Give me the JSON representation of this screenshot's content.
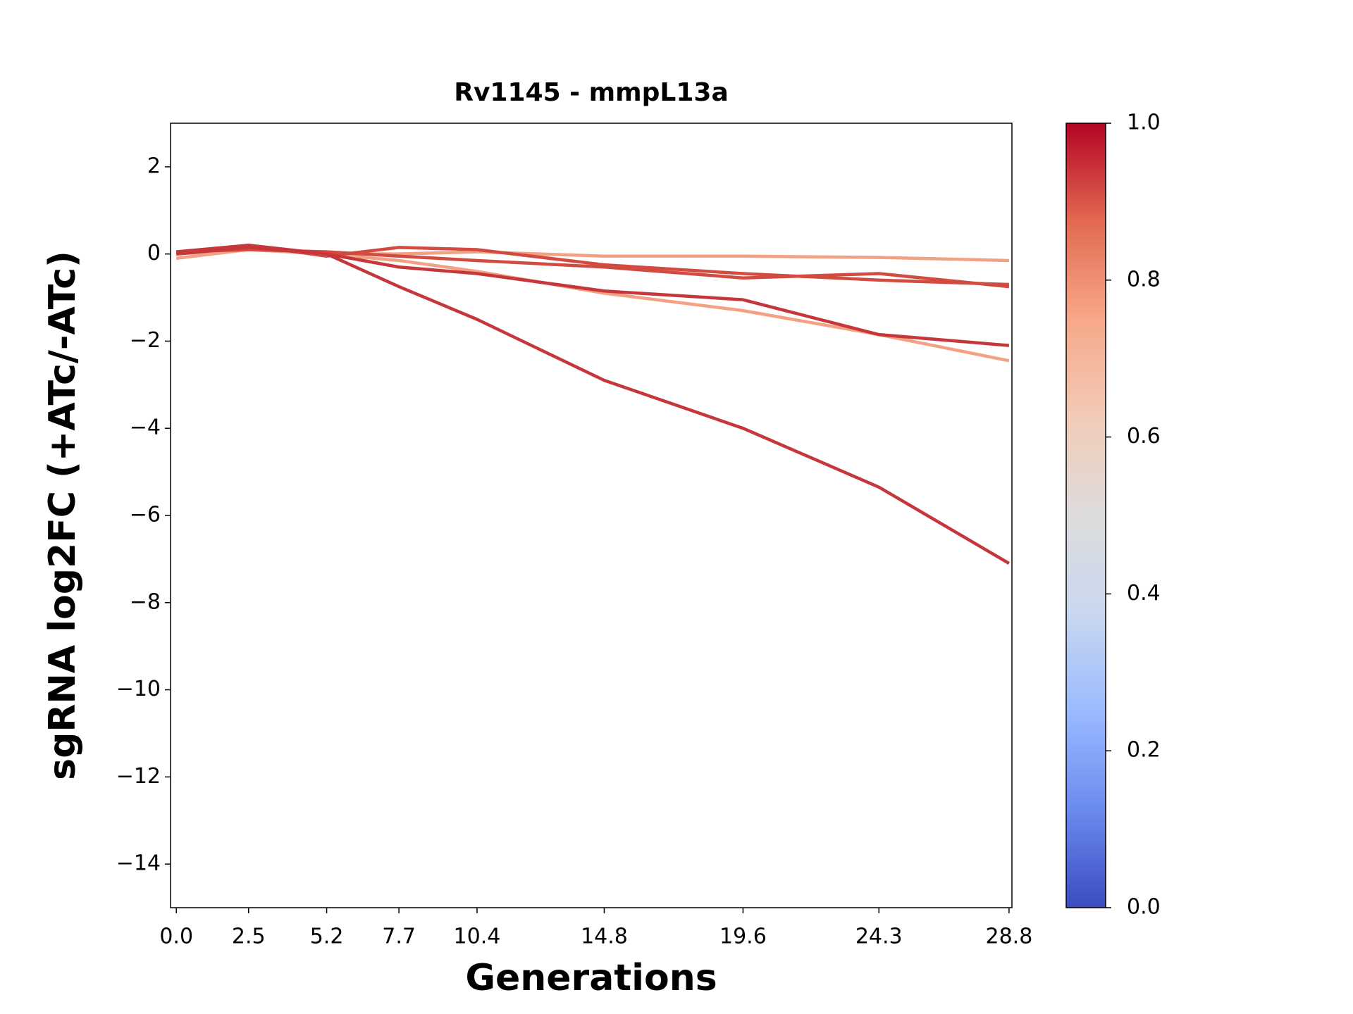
{
  "chart_data": {
    "type": "line",
    "title": "Rv1145 - mmpL13a",
    "xlabel": "Generations",
    "ylabel": "sgRNA log2FC (+ATc/-ATc)",
    "x": [
      0,
      2.5,
      5.2,
      7.7,
      10.4,
      14.8,
      19.6,
      24.3,
      28.8
    ],
    "series": [
      {
        "color": "#f2a184",
        "values": [
          -0.1,
          0.1,
          0.0,
          0.0,
          0.05,
          -0.05,
          -0.05,
          -0.08,
          -0.15
        ]
      },
      {
        "color": "#f2a184",
        "values": [
          0.0,
          0.1,
          0.0,
          -0.15,
          -0.4,
          -0.9,
          -1.3,
          -1.85,
          -2.45
        ]
      },
      {
        "color": "#d24b40",
        "values": [
          0.05,
          0.1,
          0.05,
          -0.05,
          -0.15,
          -0.3,
          -0.55,
          -0.45,
          -0.75
        ]
      },
      {
        "color": "#d24b40",
        "values": [
          0.0,
          0.2,
          -0.05,
          0.15,
          0.1,
          -0.25,
          -0.45,
          -0.6,
          -0.7
        ]
      },
      {
        "color": "#c5373a",
        "values": [
          0.0,
          0.15,
          0.0,
          -0.3,
          -0.45,
          -0.85,
          -1.05,
          -1.85,
          -2.1
        ]
      },
      {
        "color": "#c5373a",
        "values": [
          0.05,
          0.2,
          0.0,
          -0.75,
          -1.5,
          -2.9,
          -4.0,
          -5.35,
          -7.1
        ]
      }
    ],
    "xlim": [
      -0.2,
      28.9
    ],
    "ylim": [
      -15,
      3
    ],
    "xticks": [
      {
        "value": 0,
        "label": "0.0"
      },
      2.5,
      5.2,
      7.7,
      10.4,
      14.8,
      19.6,
      24.3,
      28.8
    ],
    "yticks": [
      {
        "value": -14,
        "label": "−14"
      },
      {
        "value": -12,
        "label": "−12"
      },
      {
        "value": -10,
        "label": "−10"
      },
      {
        "value": -8,
        "label": "−8"
      },
      {
        "value": -6,
        "label": "−6"
      },
      {
        "value": -4,
        "label": "−4"
      },
      {
        "value": -2,
        "label": "−2"
      },
      0,
      2
    ],
    "colorbar": {
      "colormap": "coolwarm",
      "lim": [
        0,
        1
      ],
      "ticks": [
        {
          "value": 0,
          "label": "0.0"
        },
        {
          "value": 0.2,
          "label": "0.2"
        },
        {
          "value": 0.4,
          "label": "0.4"
        },
        {
          "value": 0.6,
          "label": "0.6"
        },
        {
          "value": 0.8,
          "label": "0.8"
        },
        {
          "value": 1,
          "label": "1.0"
        }
      ]
    }
  }
}
